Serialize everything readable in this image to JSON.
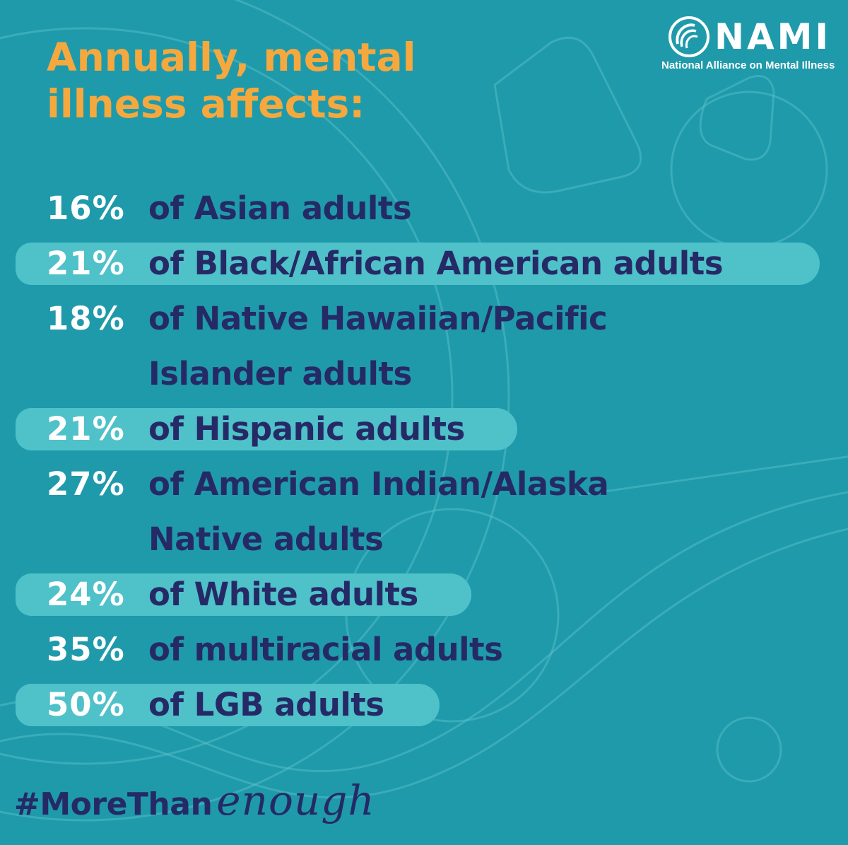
{
  "logo": {
    "wordmark": "NAMI",
    "tagline": "National Alliance on Mental Illness"
  },
  "headline": {
    "line1": "Annually, mental",
    "line2": "illness affects:"
  },
  "stats": [
    {
      "percent": "16%",
      "line1": "of Asian adults",
      "line2": "",
      "highlighted": false
    },
    {
      "percent": "21%",
      "line1": "of Black/African American adults",
      "line2": "",
      "highlighted": true
    },
    {
      "percent": "18%",
      "line1": "of Native Hawaiian/Pacific",
      "line2": "Islander adults",
      "highlighted": false
    },
    {
      "percent": "21%",
      "line1": "of Hispanic adults",
      "line2": "",
      "highlighted": true
    },
    {
      "percent": "27%",
      "line1": "of American Indian/Alaska",
      "line2": "Native adults",
      "highlighted": false
    },
    {
      "percent": "24%",
      "line1": "of White adults",
      "line2": "",
      "highlighted": true
    },
    {
      "percent": "35%",
      "line1": "of multiracial adults",
      "line2": "",
      "highlighted": false
    },
    {
      "percent": "50%",
      "line1": "of LGB adults",
      "line2": "",
      "highlighted": true
    }
  ],
  "hashtag": {
    "main": "#MoreThan",
    "script": "enough"
  },
  "colors": {
    "background": "#1f9aaa",
    "headline": "#f4a83e",
    "percent": "#ffffff",
    "body_text": "#252a66",
    "highlight": "#4fc1c9"
  }
}
